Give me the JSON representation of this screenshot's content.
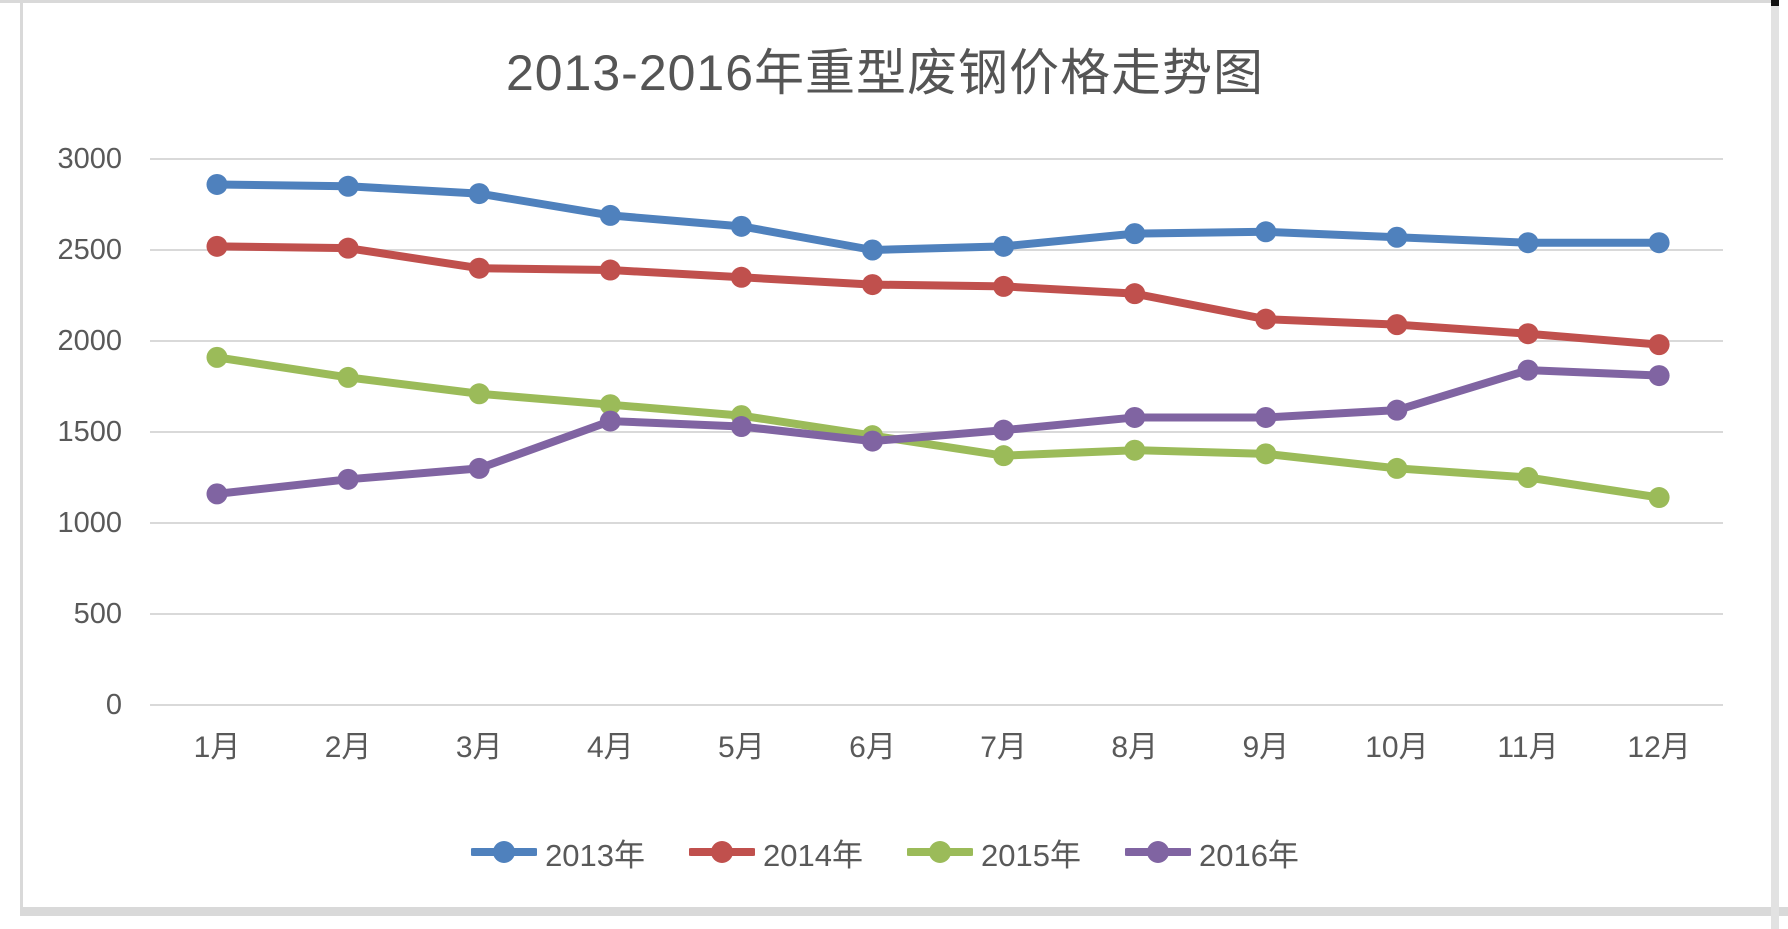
{
  "window": {
    "border_color": "#d9d9d9",
    "corner_color": "#111111",
    "background": "#ffffff"
  },
  "text_color": "#595959",
  "gridline_color": "#d9d9d9",
  "chart_data": {
    "type": "line",
    "title": "2013-2016年重型废钢价格走势图",
    "xlabel": "",
    "ylabel": "",
    "categories": [
      "1月",
      "2月",
      "3月",
      "4月",
      "5月",
      "6月",
      "7月",
      "8月",
      "9月",
      "10月",
      "11月",
      "12月"
    ],
    "y_ticks": [
      0,
      500,
      1000,
      1500,
      2000,
      2500,
      3000
    ],
    "ylim": [
      0,
      3000
    ],
    "grid": true,
    "legend_position": "bottom",
    "marker": "circle",
    "series": [
      {
        "name": "2013年",
        "color": "#4F81BD",
        "values": [
          2860,
          2850,
          2810,
          2690,
          2630,
          2500,
          2520,
          2590,
          2600,
          2570,
          2540,
          2540
        ]
      },
      {
        "name": "2014年",
        "color": "#C0504D",
        "values": [
          2520,
          2510,
          2400,
          2390,
          2350,
          2310,
          2300,
          2260,
          2120,
          2090,
          2040,
          1980
        ]
      },
      {
        "name": "2015年",
        "color": "#9BBB59",
        "values": [
          1910,
          1800,
          1710,
          1650,
          1590,
          1480,
          1370,
          1400,
          1380,
          1300,
          1250,
          1140
        ]
      },
      {
        "name": "2016年",
        "color": "#8064A2",
        "values": [
          1160,
          1240,
          1300,
          1560,
          1530,
          1450,
          1510,
          1580,
          1580,
          1620,
          1840,
          1810
        ]
      }
    ]
  }
}
